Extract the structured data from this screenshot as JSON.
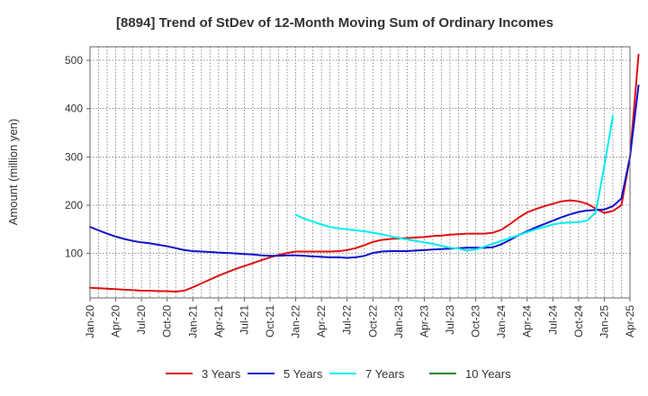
{
  "chart_data": {
    "type": "line",
    "title": "[8894]  Trend of StDev of 12-Month Moving Sum of Ordinary Incomes",
    "ylabel": "Amount (million yen)",
    "xlabel": "",
    "ylim": [
      8,
      528
    ],
    "yticks": [
      100,
      200,
      300,
      400,
      500
    ],
    "xlim": [
      "2020-01",
      "2025-04"
    ],
    "xticks": [
      "Jan-20",
      "Apr-20",
      "Jul-20",
      "Oct-20",
      "Jan-21",
      "Apr-21",
      "Jul-21",
      "Oct-21",
      "Jan-22",
      "Apr-22",
      "Jul-22",
      "Oct-22",
      "Jan-23",
      "Apr-23",
      "Jul-23",
      "Oct-23",
      "Jan-24",
      "Apr-24",
      "Jul-24",
      "Oct-24",
      "Jan-25",
      "Apr-25"
    ],
    "grid": true,
    "legend_position": "bottom",
    "series": [
      {
        "name": "3 Years",
        "color": "#dd1111",
        "start": "2020-01",
        "values": [
          29,
          28,
          27,
          26,
          25,
          24,
          23,
          23,
          22,
          22,
          21,
          23,
          30,
          38,
          46,
          54,
          61,
          68,
          74,
          80,
          86,
          92,
          97,
          101,
          104,
          104,
          104,
          104,
          104,
          105,
          107,
          111,
          117,
          124,
          128,
          130,
          131,
          132,
          133,
          134,
          136,
          137,
          139,
          140,
          141,
          141,
          141,
          143,
          149,
          161,
          174,
          185,
          192,
          198,
          203,
          208,
          210,
          208,
          203,
          193,
          184,
          188,
          200,
          300,
          512
        ]
      },
      {
        "name": "5 Years",
        "color": "#1111cc",
        "start": "2020-01",
        "values": [
          155,
          148,
          141,
          135,
          130,
          126,
          123,
          121,
          118,
          115,
          111,
          107,
          105,
          104,
          103,
          102,
          101,
          100,
          99,
          98,
          96,
          95,
          95,
          96,
          96,
          95,
          94,
          93,
          92,
          92,
          91,
          92,
          95,
          101,
          104,
          105,
          105,
          105,
          106,
          107,
          108,
          109,
          110,
          111,
          112,
          112,
          112,
          113,
          119,
          128,
          138,
          146,
          154,
          161,
          168,
          175,
          181,
          186,
          189,
          190,
          191,
          198,
          214,
          300,
          448
        ]
      },
      {
        "name": "7 Years",
        "color": "#00eeee",
        "start": "2022-01",
        "values": [
          180,
          172,
          166,
          160,
          155,
          152,
          150,
          148,
          146,
          143,
          140,
          136,
          132,
          129,
          126,
          123,
          120,
          116,
          112,
          110,
          106,
          108,
          114,
          120,
          126,
          132,
          138,
          144,
          150,
          155,
          160,
          163,
          164,
          165,
          168,
          185,
          280,
          385
        ]
      },
      {
        "name": "10 Years",
        "color": "#228822",
        "start": "2025-01",
        "values": []
      }
    ]
  }
}
